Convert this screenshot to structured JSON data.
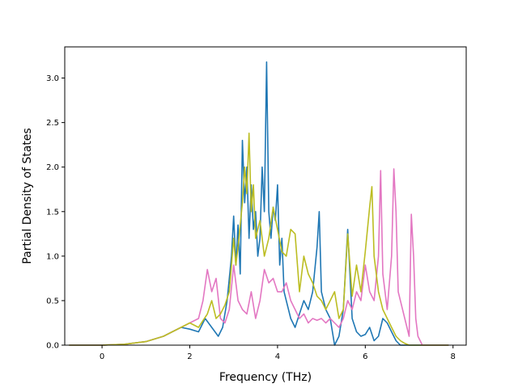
{
  "chart_data": {
    "type": "line",
    "title": "",
    "xlabel": "Frequency (THz)",
    "ylabel": "Partial Density of States",
    "xlim": [
      -0.85,
      8.3
    ],
    "ylim": [
      0,
      3.35
    ],
    "xticks": [
      0,
      2,
      4,
      6,
      8
    ],
    "yticks": [
      0.0,
      0.5,
      1.0,
      1.5,
      2.0,
      2.5,
      3.0
    ],
    "xtick_labels": [
      "0",
      "2",
      "4",
      "6",
      "8"
    ],
    "ytick_labels": [
      "0.0",
      "0.5",
      "1.0",
      "1.5",
      "2.0",
      "2.5",
      "3.0"
    ],
    "grid": false,
    "legend": "none",
    "series": [
      {
        "color": "#1f77b4",
        "x": [
          -0.75,
          0.0,
          0.5,
          1.0,
          1.4,
          1.6,
          1.8,
          2.0,
          2.2,
          2.35,
          2.5,
          2.65,
          2.75,
          2.85,
          2.95,
          3.0,
          3.05,
          3.1,
          3.15,
          3.2,
          3.25,
          3.3,
          3.35,
          3.4,
          3.45,
          3.5,
          3.55,
          3.6,
          3.65,
          3.7,
          3.75,
          3.8,
          3.85,
          3.9,
          3.95,
          4.0,
          4.05,
          4.1,
          4.15,
          4.2,
          4.3,
          4.4,
          4.5,
          4.6,
          4.7,
          4.8,
          4.9,
          4.95,
          5.0,
          5.1,
          5.2,
          5.3,
          5.4,
          5.5,
          5.6,
          5.7,
          5.8,
          5.9,
          6.0,
          6.1,
          6.2,
          6.3,
          6.4,
          6.5,
          6.6,
          6.7,
          6.8,
          6.9,
          7.0,
          7.1,
          7.2,
          7.3,
          7.9
        ],
        "y": [
          0.0,
          0.0,
          0.01,
          0.04,
          0.1,
          0.15,
          0.2,
          0.18,
          0.15,
          0.3,
          0.2,
          0.1,
          0.2,
          0.5,
          1.0,
          1.45,
          0.9,
          1.35,
          0.8,
          2.3,
          1.6,
          2.0,
          1.2,
          1.8,
          1.3,
          1.5,
          1.0,
          1.2,
          2.0,
          1.5,
          3.18,
          1.5,
          1.2,
          1.55,
          1.4,
          1.8,
          0.9,
          1.2,
          0.6,
          0.5,
          0.3,
          0.2,
          0.35,
          0.5,
          0.4,
          0.6,
          1.1,
          1.5,
          0.6,
          0.4,
          0.3,
          0.0,
          0.1,
          0.4,
          1.3,
          0.3,
          0.15,
          0.1,
          0.12,
          0.2,
          0.05,
          0.1,
          0.3,
          0.25,
          0.15,
          0.05,
          0.0,
          0.0,
          0.0,
          0.0,
          0.0,
          0.0,
          0.0
        ]
      },
      {
        "color": "#e377c2",
        "x": [
          -0.75,
          0.0,
          0.5,
          1.0,
          1.4,
          1.6,
          1.8,
          2.0,
          2.2,
          2.3,
          2.4,
          2.5,
          2.6,
          2.7,
          2.8,
          2.9,
          3.0,
          3.1,
          3.2,
          3.3,
          3.4,
          3.5,
          3.6,
          3.7,
          3.8,
          3.9,
          4.0,
          4.1,
          4.2,
          4.3,
          4.4,
          4.5,
          4.6,
          4.7,
          4.8,
          4.9,
          5.0,
          5.1,
          5.2,
          5.3,
          5.4,
          5.5,
          5.6,
          5.7,
          5.8,
          5.9,
          6.0,
          6.1,
          6.2,
          6.3,
          6.35,
          6.4,
          6.5,
          6.6,
          6.65,
          6.7,
          6.75,
          6.8,
          6.9,
          7.0,
          7.05,
          7.1,
          7.15,
          7.2,
          7.3,
          7.9
        ],
        "y": [
          0.0,
          0.0,
          0.01,
          0.04,
          0.1,
          0.15,
          0.2,
          0.25,
          0.3,
          0.5,
          0.85,
          0.6,
          0.75,
          0.3,
          0.25,
          0.4,
          0.9,
          0.5,
          0.4,
          0.35,
          0.6,
          0.3,
          0.5,
          0.85,
          0.7,
          0.75,
          0.6,
          0.6,
          0.7,
          0.5,
          0.4,
          0.3,
          0.35,
          0.25,
          0.3,
          0.28,
          0.3,
          0.25,
          0.3,
          0.25,
          0.2,
          0.3,
          0.5,
          0.4,
          0.6,
          0.5,
          0.9,
          0.6,
          0.5,
          1.0,
          1.96,
          0.8,
          0.4,
          1.0,
          1.98,
          1.5,
          0.6,
          0.5,
          0.3,
          0.1,
          1.47,
          1.0,
          0.3,
          0.1,
          0.0,
          0.0
        ]
      },
      {
        "color": "#bcbd22",
        "x": [
          -0.75,
          0.0,
          0.5,
          1.0,
          1.4,
          1.6,
          1.8,
          2.0,
          2.2,
          2.4,
          2.5,
          2.6,
          2.7,
          2.8,
          2.9,
          3.0,
          3.05,
          3.1,
          3.2,
          3.25,
          3.3,
          3.35,
          3.4,
          3.45,
          3.5,
          3.6,
          3.7,
          3.8,
          3.9,
          4.0,
          4.1,
          4.2,
          4.3,
          4.4,
          4.5,
          4.6,
          4.7,
          4.8,
          4.9,
          5.0,
          5.1,
          5.2,
          5.3,
          5.4,
          5.5,
          5.6,
          5.7,
          5.8,
          5.9,
          6.0,
          6.1,
          6.15,
          6.2,
          6.3,
          6.4,
          6.5,
          6.6,
          6.7,
          6.8,
          6.9,
          7.0,
          7.1,
          7.2,
          7.9
        ],
        "y": [
          0.0,
          0.0,
          0.01,
          0.04,
          0.1,
          0.15,
          0.2,
          0.25,
          0.2,
          0.35,
          0.5,
          0.3,
          0.35,
          0.45,
          0.6,
          1.2,
          0.9,
          1.1,
          1.6,
          2.0,
          1.7,
          2.38,
          1.5,
          1.8,
          1.2,
          1.4,
          1.0,
          1.2,
          1.55,
          1.3,
          1.05,
          1.0,
          1.3,
          1.25,
          0.6,
          1.0,
          0.8,
          0.7,
          0.55,
          0.5,
          0.4,
          0.5,
          0.6,
          0.3,
          0.4,
          1.25,
          0.55,
          0.9,
          0.6,
          1.05,
          1.55,
          1.78,
          1.0,
          0.6,
          0.4,
          0.3,
          0.2,
          0.1,
          0.05,
          0.02,
          0.0,
          0.0,
          0.0,
          0.0
        ]
      }
    ]
  }
}
